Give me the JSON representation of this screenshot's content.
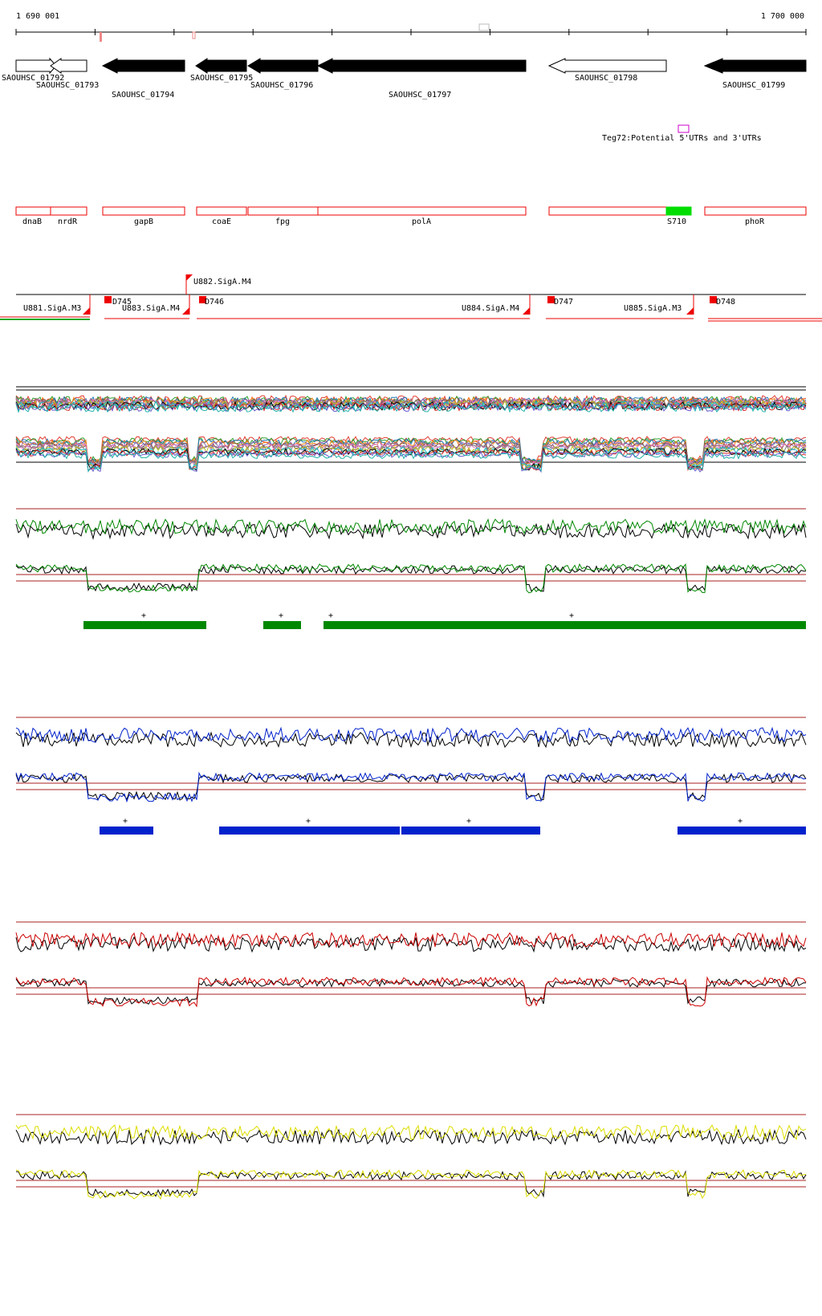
{
  "ruler": {
    "start_label": "1 690 001",
    "end_label": "1 700 000"
  },
  "genes": [
    {
      "label": "SAOUHSC_01792",
      "strand": "+",
      "filled": false
    },
    {
      "label": "SAOUHSC_01793",
      "strand": "-",
      "filled": false
    },
    {
      "label": "SAOUHSC_01794",
      "strand": "-",
      "filled": true
    },
    {
      "label": "SAOUHSC_01795",
      "strand": "-",
      "filled": true
    },
    {
      "label": "SAOUHSC_01796",
      "strand": "-",
      "filled": true
    },
    {
      "label": "SAOUHSC_01797",
      "strand": "-",
      "filled": true
    },
    {
      "label": "SAOUHSC_01798",
      "strand": "-",
      "filled": false
    },
    {
      "label": "SAOUHSC_01799",
      "strand": "-",
      "filled": true
    }
  ],
  "utr_annotation": {
    "label": "Teg72:Potential 5'UTRs and 3'UTRs",
    "color": "#cc00cc"
  },
  "gene_names": [
    {
      "label": "dnaB"
    },
    {
      "label": "nrdR"
    },
    {
      "label": "gapB"
    },
    {
      "label": "coaE"
    },
    {
      "label": "fpg"
    },
    {
      "label": "polA"
    },
    {
      "label": "S710",
      "highlight": "#00dd00"
    },
    {
      "label": "phoR"
    }
  ],
  "promoters": [
    {
      "label": "U881.SigA.M3"
    },
    {
      "label": "D745"
    },
    {
      "label": "U883.SigA.M4"
    },
    {
      "label": "U882.SigA.M4"
    },
    {
      "label": "D746"
    },
    {
      "label": "U884.SigA.M4"
    },
    {
      "label": "D747"
    },
    {
      "label": "U885.SigA.M3"
    },
    {
      "label": "D748"
    }
  ],
  "condition_tracks": [
    {
      "color": "#008800",
      "segments": [
        {
          "label": "+"
        },
        {
          "label": "+"
        },
        {
          "label": "+"
        },
        {
          "label": "+"
        }
      ]
    },
    {
      "color": "#0022cc",
      "segments": [
        {
          "label": "+"
        },
        {
          "label": "+"
        },
        {
          "label": "+"
        },
        {
          "label": "+"
        }
      ]
    },
    {
      "color": "#cc0000",
      "segments": []
    },
    {
      "color": "#dddd00",
      "segments": []
    }
  ],
  "colors": {
    "feature_red": "#ee0000",
    "threshold": "#aa2222",
    "bg": "#ffffff"
  }
}
